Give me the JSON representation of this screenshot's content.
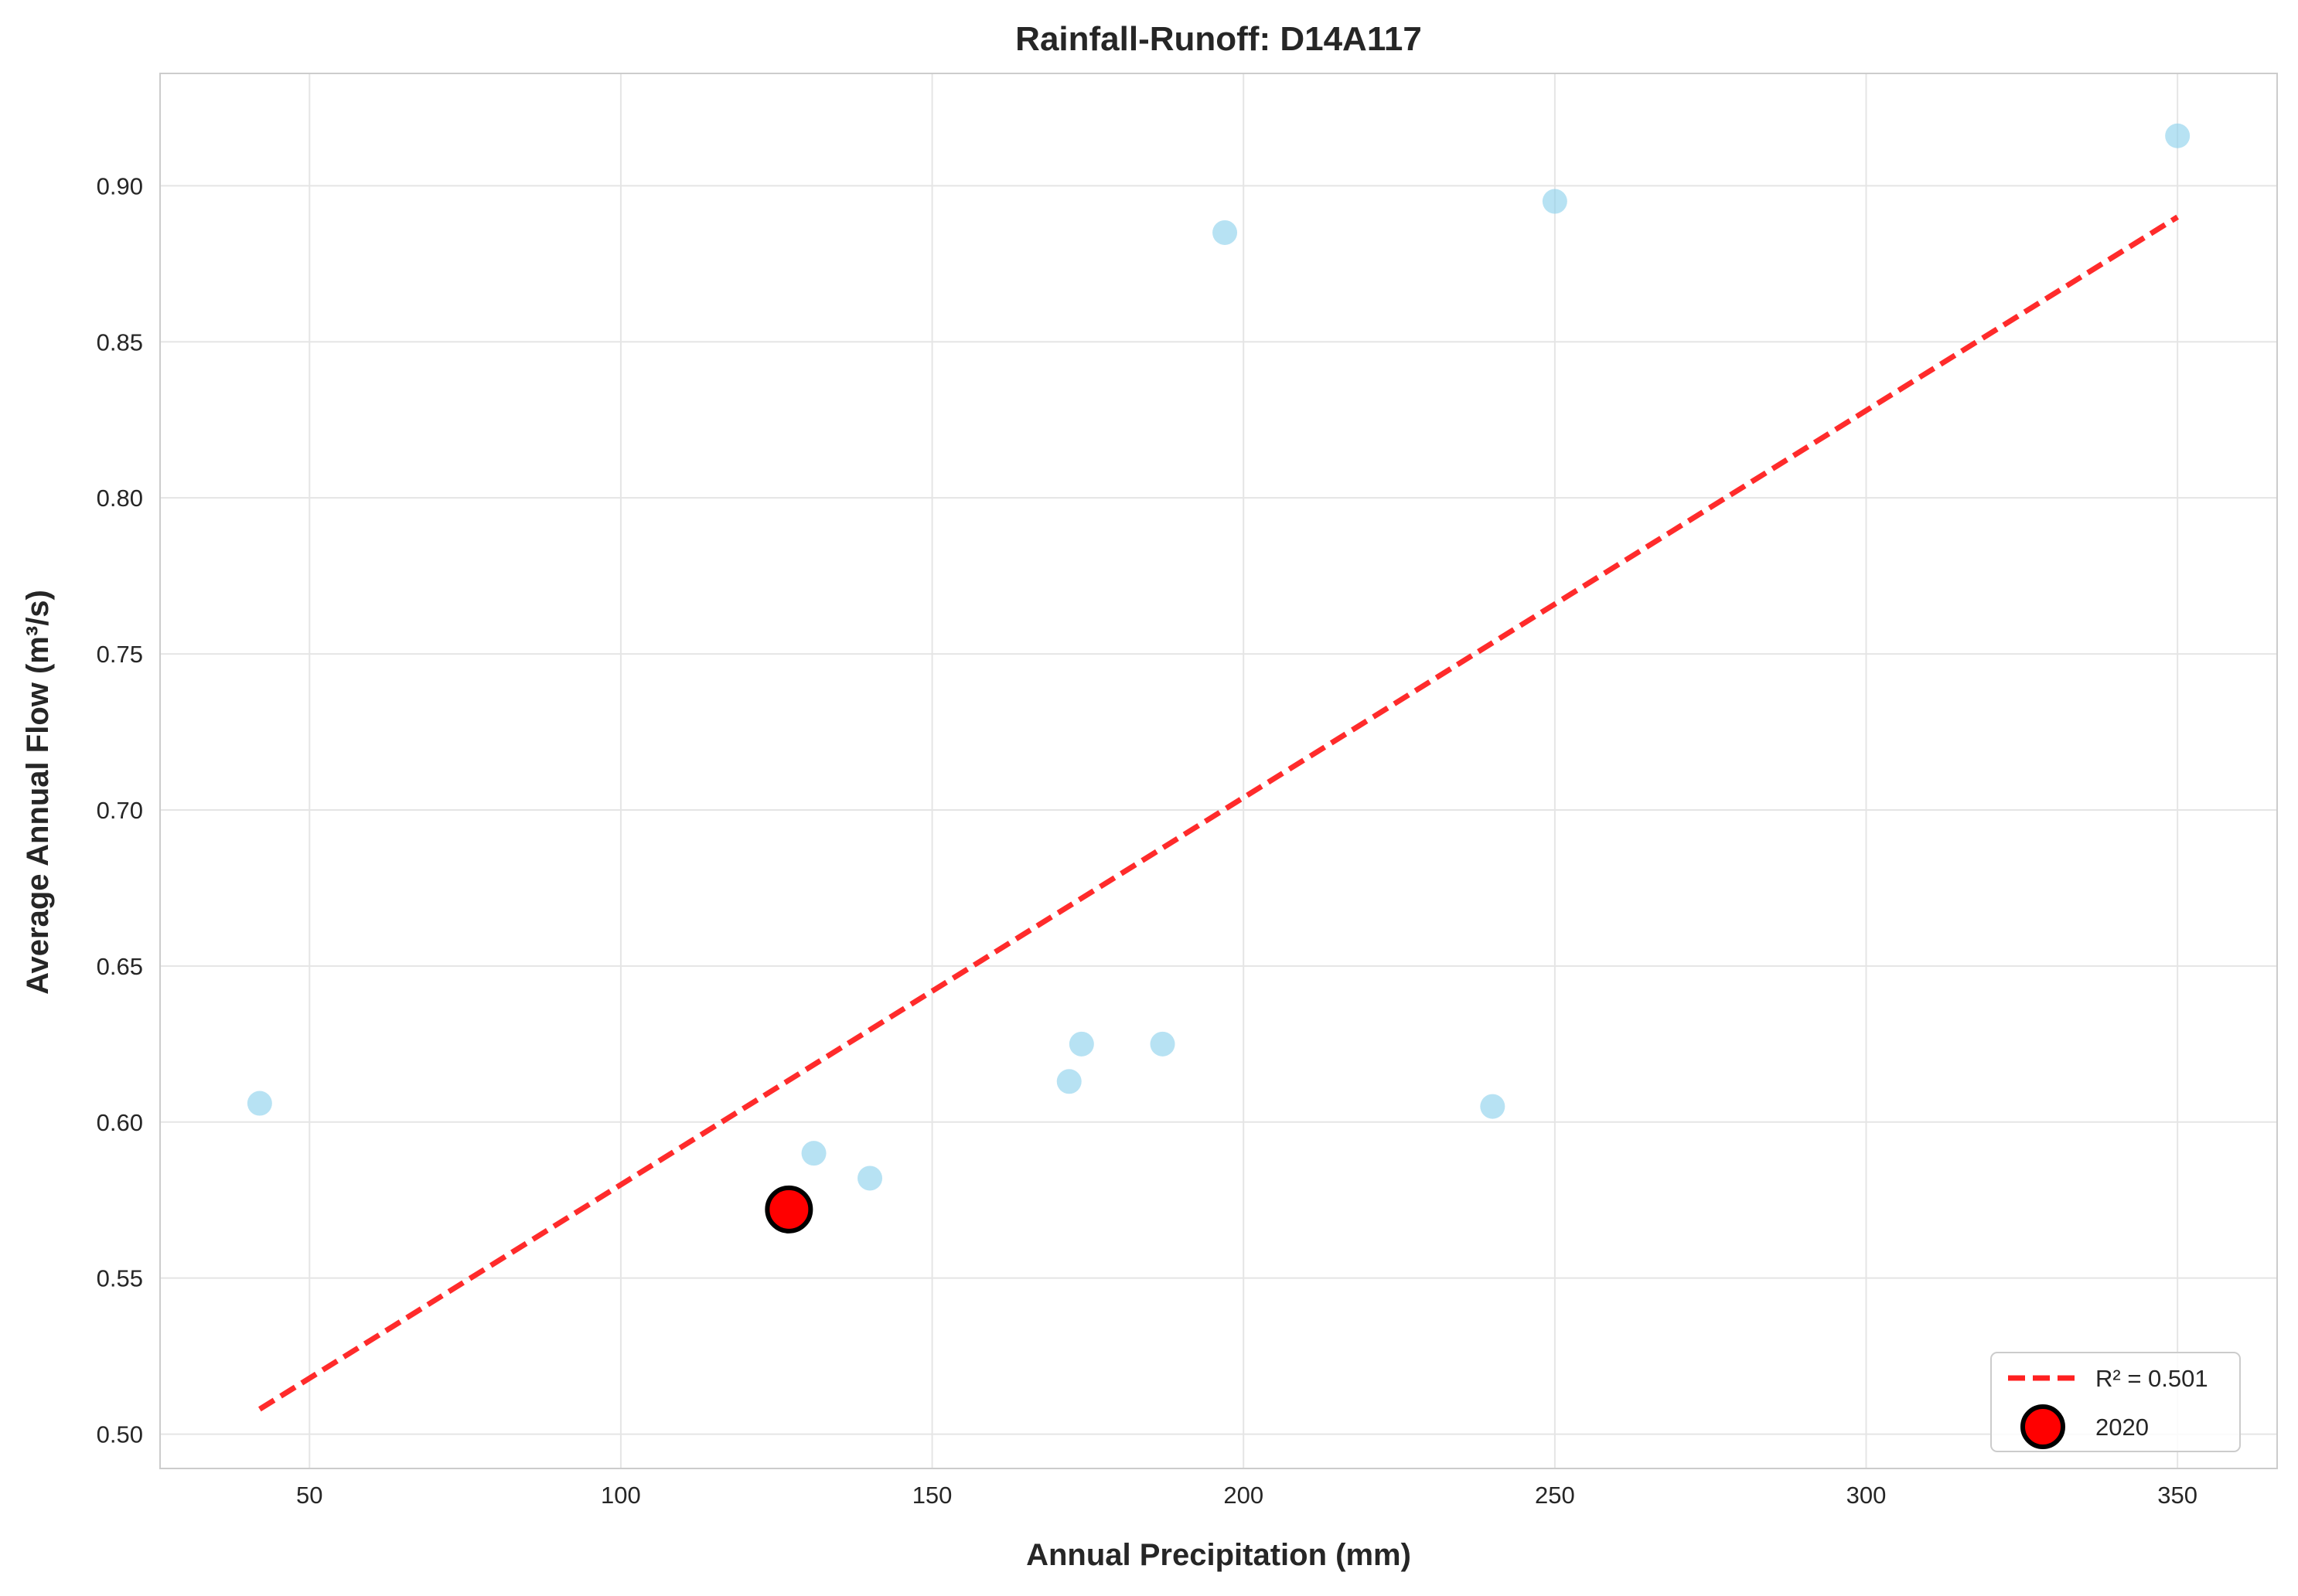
{
  "chart_data": {
    "type": "scatter",
    "title": "Rainfall-Runoff: D14A117",
    "xlabel": "Annual Precipitation (mm)",
    "ylabel": "Average Annual Flow (m³/s)",
    "xlim": [
      26,
      366
    ],
    "ylim": [
      0.489,
      0.936
    ],
    "xticks": [
      50,
      100,
      150,
      200,
      250,
      300,
      350
    ],
    "yticks": [
      0.5,
      0.55,
      0.6,
      0.65,
      0.7,
      0.75,
      0.8,
      0.85,
      0.9
    ],
    "xtick_labels": [
      "50",
      "100",
      "150",
      "200",
      "250",
      "300",
      "350"
    ],
    "ytick_labels": [
      "0.50",
      "0.55",
      "0.60",
      "0.65",
      "0.70",
      "0.75",
      "0.80",
      "0.85",
      "0.90"
    ],
    "grid": true,
    "legend_position": "lower-right",
    "points": [
      {
        "x": 42,
        "y": 0.606
      },
      {
        "x": 131,
        "y": 0.59
      },
      {
        "x": 140,
        "y": 0.582
      },
      {
        "x": 172,
        "y": 0.613
      },
      {
        "x": 174,
        "y": 0.625
      },
      {
        "x": 187,
        "y": 0.625
      },
      {
        "x": 197,
        "y": 0.885
      },
      {
        "x": 240,
        "y": 0.605
      },
      {
        "x": 250,
        "y": 0.895
      },
      {
        "x": 350,
        "y": 0.916
      }
    ],
    "highlight": {
      "x": 127,
      "y": 0.572,
      "name": "2020"
    },
    "trendline": {
      "name": "R² = 0.501",
      "x": [
        42,
        350
      ],
      "y": [
        0.508,
        0.89
      ]
    },
    "colors": {
      "points": "#87ceeb",
      "highlight_fill": "#ff0000",
      "highlight_edge": "#000000",
      "trendline": "#ff2020",
      "grid": "#e5e5e5",
      "spine": "#cccccc"
    }
  }
}
